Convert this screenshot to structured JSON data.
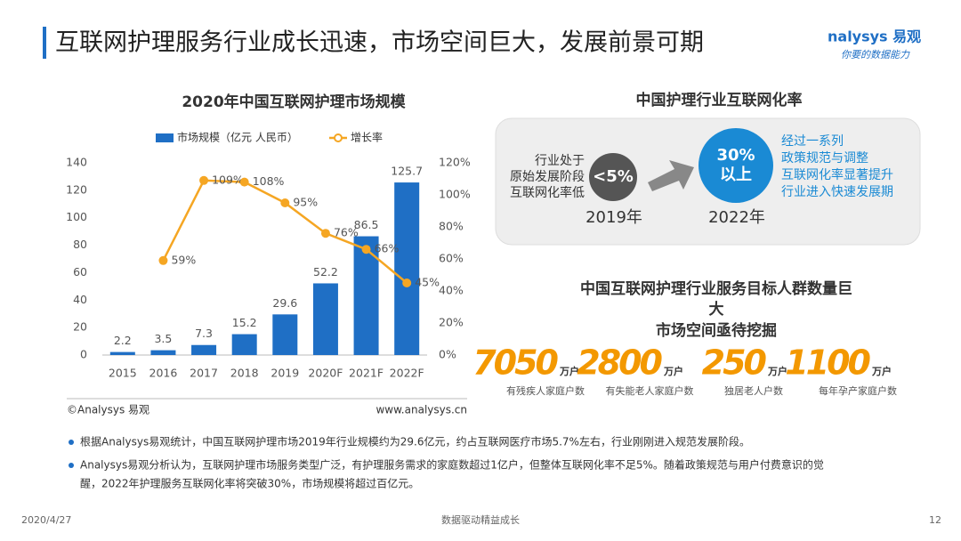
{
  "header": {
    "title": "互联网护理服务行业成长迅速，市场空间巨大，发展前景可期",
    "logo": "nalysys 易观",
    "slogan": "你要的数据能力"
  },
  "chart_data": {
    "type": "bar",
    "title": "2020年中国互联网护理市场规模",
    "categories": [
      "2015",
      "2016",
      "2017",
      "2018",
      "2019",
      "2020F",
      "2021F",
      "2022F"
    ],
    "series": [
      {
        "name": "市场规模（亿元 人民币）",
        "color": "#1f6fc5",
        "values": [
          2.2,
          3.5,
          7.3,
          15.2,
          29.6,
          52.2,
          86.5,
          125.7
        ]
      },
      {
        "name": "增长率",
        "type": "line",
        "axis": "y2",
        "color": "#f5a623",
        "values": [
          null,
          59,
          109,
          108,
          95,
          76,
          66,
          45
        ],
        "value_labels": [
          null,
          "59%",
          "109%",
          "108%",
          "95%",
          "76%",
          "66%",
          "45%"
        ]
      }
    ],
    "ylim": [
      0,
      140
    ],
    "yticks": [
      0,
      20,
      40,
      60,
      80,
      100,
      120,
      140
    ],
    "y2lim": [
      0,
      120
    ],
    "y2ticks": [
      {
        "value": 0,
        "label": "0%"
      },
      {
        "value": 20,
        "label": "20%"
      },
      {
        "value": 40,
        "label": "40%"
      },
      {
        "value": 60,
        "label": "60%"
      },
      {
        "value": 80,
        "label": "80%"
      },
      {
        "value": 100,
        "label": "100%"
      },
      {
        "value": 120,
        "label": "120%"
      }
    ],
    "legend": "top",
    "source_left": "©Analysys 易观",
    "source_right": "www.analysys.cn"
  },
  "rate": {
    "title": "中国护理行业互联网化率",
    "left_text": [
      "行业处于",
      "原始发展阶段",
      "互联网化率低"
    ],
    "from_value": "<5%",
    "from_year": "2019年",
    "to_value": [
      "30%",
      "以上"
    ],
    "to_year": "2022年",
    "right_text": [
      "经过一系列",
      "政策规范与调整",
      "互联网化率显著提升",
      "行业进入快速发展期"
    ]
  },
  "target": {
    "title": [
      "中国互联网护理行业服务目标人群数量巨",
      "大",
      "市场空间亟待挖掘"
    ],
    "stats": [
      {
        "number": "7050",
        "unit": "万户",
        "label": "有残疾人家庭户数"
      },
      {
        "number": "2800",
        "unit": "万户",
        "label": "有失能老人家庭户数"
      },
      {
        "number": "250",
        "unit": "万户",
        "label": "独居老人户数"
      },
      {
        "number": "1100",
        "unit": "万户",
        "label": "每年孕产家庭户数"
      }
    ]
  },
  "bullets": [
    [
      "根据Analysys易观统计，中国互联网护理市场2019年行业规模约为29.6亿元，约占互联网医疗市场5.7%左右，行业刚刚进入规范发展阶段。"
    ],
    [
      "Analysys易观分析认为，互联网护理市场服务类型广泛，有护理服务需求的家庭数超过1亿户，但整体互联网化率不足5%。随着政策规范与用户付费意识的觉",
      "醒，2022年护理服务互联网化率将突破30%，市场规模将超过百亿元。"
    ]
  ],
  "footer": {
    "date": "2020/4/27",
    "center": "数据驱动精益成长",
    "page": "12"
  }
}
